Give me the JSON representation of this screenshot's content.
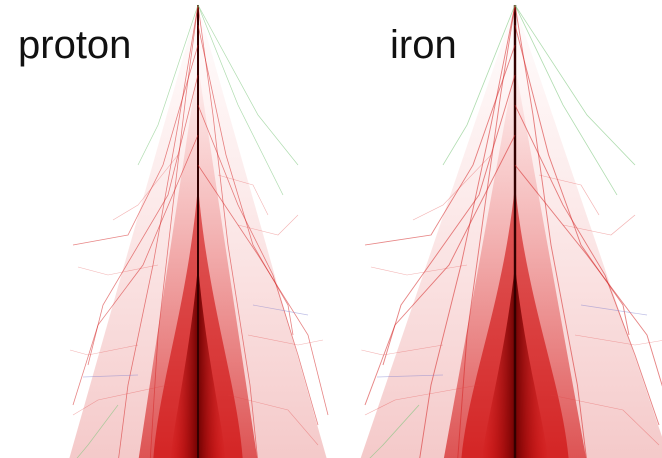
{
  "labels": {
    "left": "proton",
    "right": "iron"
  }
}
